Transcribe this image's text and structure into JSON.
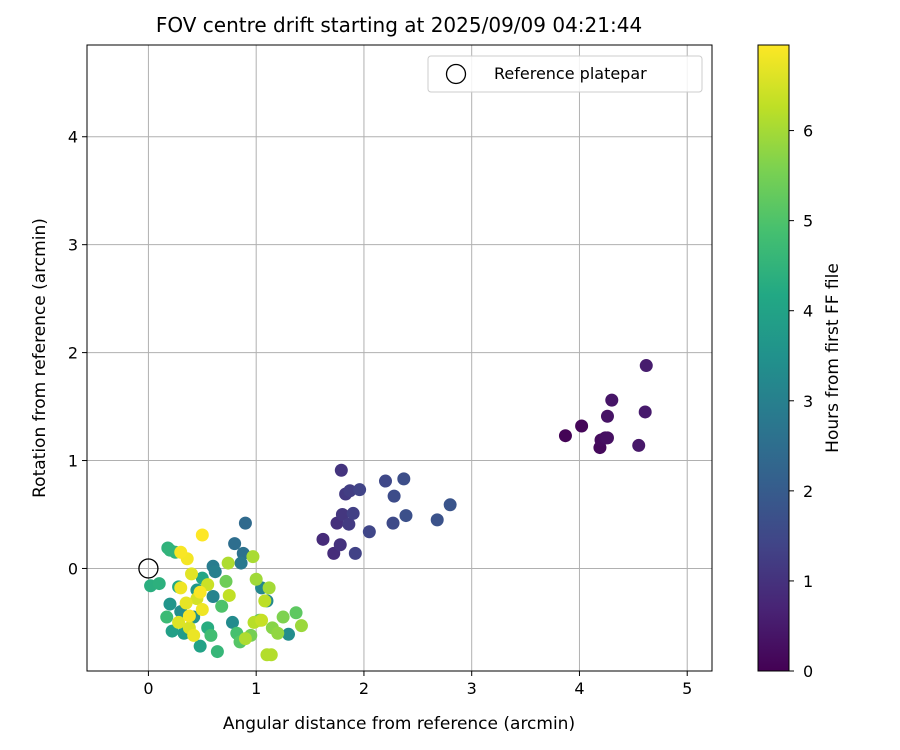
{
  "chart_data": {
    "type": "scatter",
    "title": "FOV centre drift starting at 2025/09/09 04:21:44",
    "xlabel": "Angular distance from reference (arcmin)",
    "ylabel": "Rotation from reference (arcmin)",
    "xlim": [
      -0.57,
      5.23
    ],
    "ylim": [
      -0.95,
      4.85
    ],
    "xticks": [
      "0",
      "1",
      "2",
      "3",
      "4",
      "5"
    ],
    "yticks": [
      "0",
      "1",
      "2",
      "3",
      "4"
    ],
    "grid": true,
    "legend": {
      "position": "top-right",
      "entries": [
        "Reference platepar"
      ]
    },
    "reference_point": {
      "x": 0,
      "y": 0,
      "label": "Reference platepar"
    },
    "colorbar": {
      "label": "Hours from first FF file",
      "min": 0,
      "max": 6.95,
      "ticks": [
        "0",
        "1",
        "2",
        "3",
        "4",
        "5",
        "6"
      ],
      "colormap": "viridis"
    },
    "points": [
      {
        "x": 3.87,
        "y": 1.23,
        "c": 0.05
      },
      {
        "x": 4.02,
        "y": 1.32,
        "c": 0.1
      },
      {
        "x": 4.19,
        "y": 1.12,
        "c": 0.15
      },
      {
        "x": 4.2,
        "y": 1.19,
        "c": 0.2
      },
      {
        "x": 4.24,
        "y": 1.21,
        "c": 0.25
      },
      {
        "x": 4.26,
        "y": 1.21,
        "c": 0.3
      },
      {
        "x": 4.26,
        "y": 1.41,
        "c": 0.35
      },
      {
        "x": 4.3,
        "y": 1.56,
        "c": 0.4
      },
      {
        "x": 4.55,
        "y": 1.14,
        "c": 0.45
      },
      {
        "x": 4.61,
        "y": 1.45,
        "c": 0.5
      },
      {
        "x": 4.62,
        "y": 1.88,
        "c": 0.55
      },
      {
        "x": 1.62,
        "y": 0.27,
        "c": 0.85
      },
      {
        "x": 1.72,
        "y": 0.14,
        "c": 0.9
      },
      {
        "x": 1.75,
        "y": 0.42,
        "c": 0.95
      },
      {
        "x": 1.78,
        "y": 0.22,
        "c": 1.0
      },
      {
        "x": 1.79,
        "y": 0.91,
        "c": 1.05
      },
      {
        "x": 1.8,
        "y": 0.5,
        "c": 1.1
      },
      {
        "x": 1.83,
        "y": 0.69,
        "c": 1.15
      },
      {
        "x": 1.86,
        "y": 0.41,
        "c": 1.2
      },
      {
        "x": 1.87,
        "y": 0.72,
        "c": 1.25
      },
      {
        "x": 1.9,
        "y": 0.51,
        "c": 1.3
      },
      {
        "x": 1.92,
        "y": 0.14,
        "c": 1.35
      },
      {
        "x": 1.96,
        "y": 0.73,
        "c": 1.4
      },
      {
        "x": 2.05,
        "y": 0.34,
        "c": 1.45
      },
      {
        "x": 2.2,
        "y": 0.81,
        "c": 1.5
      },
      {
        "x": 2.27,
        "y": 0.42,
        "c": 1.55
      },
      {
        "x": 2.28,
        "y": 0.67,
        "c": 1.6
      },
      {
        "x": 2.37,
        "y": 0.83,
        "c": 1.65
      },
      {
        "x": 2.39,
        "y": 0.49,
        "c": 1.7
      },
      {
        "x": 2.68,
        "y": 0.45,
        "c": 1.75
      },
      {
        "x": 2.8,
        "y": 0.59,
        "c": 1.8
      },
      {
        "x": 0.9,
        "y": 0.42,
        "c": 2.4
      },
      {
        "x": 0.8,
        "y": 0.23,
        "c": 2.5
      },
      {
        "x": 0.88,
        "y": 0.14,
        "c": 2.6
      },
      {
        "x": 0.86,
        "y": 0.05,
        "c": 2.8
      },
      {
        "x": 0.6,
        "y": 0.02,
        "c": 2.9
      },
      {
        "x": 0.62,
        "y": -0.03,
        "c": 3.0
      },
      {
        "x": 0.6,
        "y": -0.26,
        "c": 3.1
      },
      {
        "x": 1.05,
        "y": -0.18,
        "c": 3.2
      },
      {
        "x": 1.1,
        "y": -0.3,
        "c": 3.25
      },
      {
        "x": 0.78,
        "y": -0.5,
        "c": 3.3
      },
      {
        "x": 1.3,
        "y": -0.61,
        "c": 3.35
      },
      {
        "x": 0.3,
        "y": -0.4,
        "c": 3.4
      },
      {
        "x": 0.42,
        "y": -0.45,
        "c": 3.5
      },
      {
        "x": 0.2,
        "y": -0.33,
        "c": 3.6
      },
      {
        "x": 0.45,
        "y": -0.2,
        "c": 3.7
      },
      {
        "x": 0.33,
        "y": -0.6,
        "c": 3.8
      },
      {
        "x": 0.22,
        "y": -0.58,
        "c": 3.9
      },
      {
        "x": 0.48,
        "y": -0.72,
        "c": 4.0
      },
      {
        "x": 0.5,
        "y": -0.09,
        "c": 4.1
      },
      {
        "x": 0.28,
        "y": -0.17,
        "c": 4.2
      },
      {
        "x": 0.55,
        "y": -0.55,
        "c": 4.3
      },
      {
        "x": 0.02,
        "y": -0.16,
        "c": 4.35
      },
      {
        "x": 0.1,
        "y": -0.14,
        "c": 4.4
      },
      {
        "x": 0.18,
        "y": 0.19,
        "c": 4.45
      },
      {
        "x": 0.2,
        "y": 0.17,
        "c": 4.5
      },
      {
        "x": 0.25,
        "y": 0.15,
        "c": 4.5
      },
      {
        "x": 0.64,
        "y": -0.77,
        "c": 4.6
      },
      {
        "x": 0.17,
        "y": -0.45,
        "c": 4.7
      },
      {
        "x": 0.58,
        "y": -0.62,
        "c": 4.8
      },
      {
        "x": 0.82,
        "y": -0.6,
        "c": 4.9
      },
      {
        "x": 0.68,
        "y": -0.35,
        "c": 5.0
      },
      {
        "x": 0.85,
        "y": -0.68,
        "c": 5.1
      },
      {
        "x": 1.37,
        "y": -0.41,
        "c": 5.2
      },
      {
        "x": 1.03,
        "y": -0.48,
        "c": 5.3
      },
      {
        "x": 0.72,
        "y": -0.12,
        "c": 5.4
      },
      {
        "x": 0.95,
        "y": -0.62,
        "c": 5.5
      },
      {
        "x": 1.25,
        "y": -0.45,
        "c": 5.6
      },
      {
        "x": 1.15,
        "y": -0.55,
        "c": 5.7
      },
      {
        "x": 1.2,
        "y": -0.6,
        "c": 5.8
      },
      {
        "x": 1.42,
        "y": -0.53,
        "c": 5.9
      },
      {
        "x": 1.0,
        "y": -0.1,
        "c": 5.95
      },
      {
        "x": 1.12,
        "y": -0.18,
        "c": 6.0
      },
      {
        "x": 0.97,
        "y": 0.11,
        "c": 6.05
      },
      {
        "x": 0.74,
        "y": 0.05,
        "c": 6.1
      },
      {
        "x": 0.9,
        "y": -0.65,
        "c": 6.1
      },
      {
        "x": 1.1,
        "y": -0.8,
        "c": 6.15
      },
      {
        "x": 1.14,
        "y": -0.8,
        "c": 6.15
      },
      {
        "x": 0.98,
        "y": -0.5,
        "c": 6.2
      },
      {
        "x": 1.08,
        "y": -0.3,
        "c": 6.25
      },
      {
        "x": 0.75,
        "y": -0.25,
        "c": 6.3
      },
      {
        "x": 1.05,
        "y": -0.48,
        "c": 6.35
      },
      {
        "x": 0.55,
        "y": -0.15,
        "c": 6.4
      },
      {
        "x": 0.45,
        "y": -0.28,
        "c": 6.5
      },
      {
        "x": 0.38,
        "y": -0.55,
        "c": 6.55
      },
      {
        "x": 0.28,
        "y": -0.5,
        "c": 6.6
      },
      {
        "x": 0.4,
        "y": -0.05,
        "c": 6.65
      },
      {
        "x": 0.35,
        "y": -0.32,
        "c": 6.7
      },
      {
        "x": 0.42,
        "y": -0.62,
        "c": 6.75
      },
      {
        "x": 0.3,
        "y": -0.18,
        "c": 6.8
      },
      {
        "x": 0.5,
        "y": -0.38,
        "c": 6.8
      },
      {
        "x": 0.36,
        "y": 0.09,
        "c": 6.85
      },
      {
        "x": 0.3,
        "y": 0.15,
        "c": 6.9
      },
      {
        "x": 0.5,
        "y": 0.31,
        "c": 6.95
      },
      {
        "x": 0.48,
        "y": -0.22,
        "c": 6.9
      },
      {
        "x": 0.38,
        "y": -0.44,
        "c": 6.85
      }
    ]
  }
}
